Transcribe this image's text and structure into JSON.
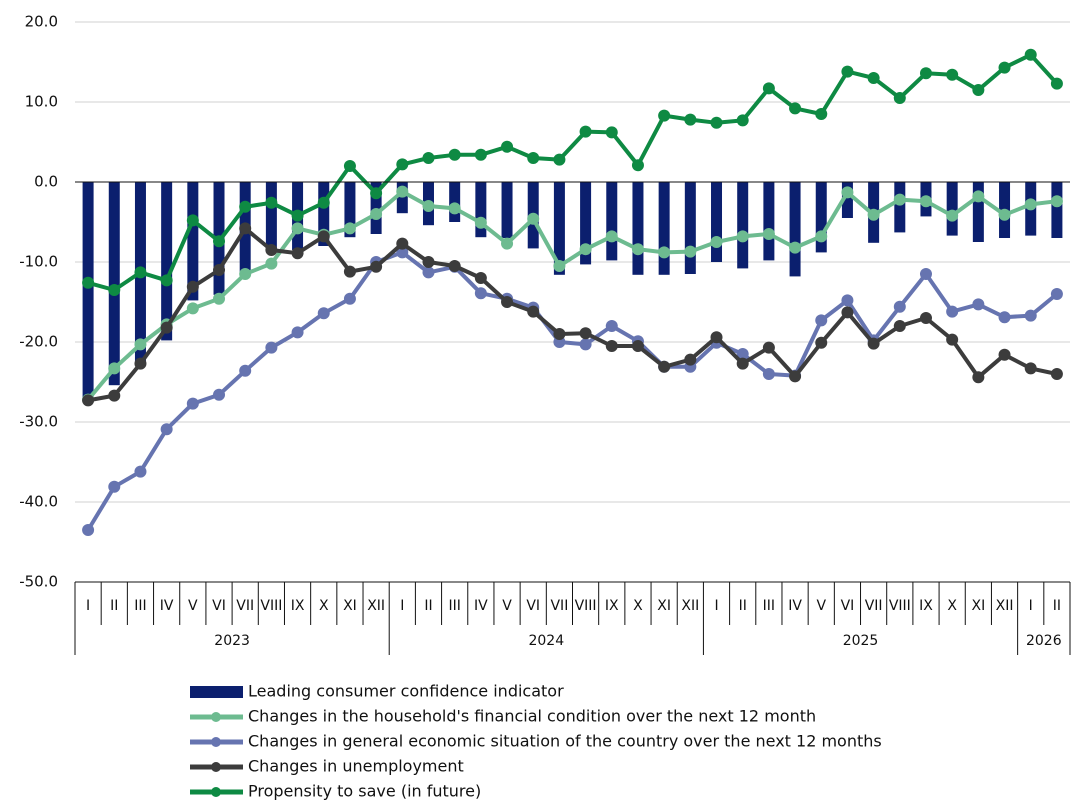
{
  "chart_data": {
    "type": "bar-line",
    "category_groups": [
      {
        "label": "2023",
        "categories": [
          "I",
          "II",
          "III",
          "IV",
          "V",
          "VI",
          "VII",
          "VIII",
          "IX",
          "X",
          "XI",
          "XII"
        ]
      },
      {
        "label": "2024",
        "categories": [
          "I",
          "II",
          "III",
          "IV",
          "V",
          "VI",
          "VII",
          "VIII",
          "IX",
          "X",
          "XI",
          "XII"
        ]
      },
      {
        "label": "2025",
        "categories": [
          "I",
          "II",
          "III",
          "IV",
          "V",
          "VI",
          "VII",
          "VIII",
          "IX",
          "X",
          "XI",
          "XII"
        ]
      },
      {
        "label": "2026",
        "categories": [
          "I",
          "II"
        ]
      }
    ],
    "series": [
      {
        "name": "Leading consumer confidence indicator",
        "type": "bar",
        "color": "#0b1f6e",
        "values": [
          -27.3,
          -25.4,
          -22.5,
          -19.8,
          -14.8,
          -14.1,
          -11.3,
          -8.5,
          -8.5,
          -8.0,
          -6.9,
          -6.5,
          -3.9,
          -5.4,
          -5.0,
          -6.9,
          -7.0,
          -8.3,
          -11.6,
          -10.3,
          -9.8,
          -11.6,
          -11.6,
          -11.5,
          -10.0,
          -10.8,
          -9.8,
          -11.8,
          -8.8,
          -4.5,
          -7.6,
          -6.3,
          -4.3,
          -6.7,
          -7.5,
          -7.0,
          -6.7,
          -7.0
        ]
      },
      {
        "name": "Changes in the household's financial condition over the next 12 month",
        "type": "line",
        "color": "#6dbb90",
        "values": [
          -27.2,
          -23.3,
          -20.3,
          -17.8,
          -15.8,
          -14.6,
          -11.5,
          -10.2,
          -5.8,
          -6.6,
          -5.8,
          -4.0,
          -1.2,
          -3.0,
          -3.3,
          -5.1,
          -7.7,
          -4.6,
          -10.5,
          -8.4,
          -6.8,
          -8.4,
          -8.8,
          -8.7,
          -7.5,
          -6.8,
          -6.5,
          -8.2,
          -6.8,
          -1.3,
          -4.1,
          -2.2,
          -2.4,
          -4.2,
          -1.8,
          -4.1,
          -2.8,
          -2.4
        ]
      },
      {
        "name": "Changes in general economic situation of the country over the next 12 months",
        "type": "line",
        "color": "#6674b0",
        "values": [
          -43.5,
          -38.1,
          -36.2,
          -30.9,
          -27.7,
          -26.6,
          -23.6,
          -20.7,
          -18.8,
          -16.4,
          -14.6,
          -10.0,
          -8.8,
          -11.3,
          -10.6,
          -13.9,
          -14.6,
          -15.7,
          -20.0,
          -20.3,
          -18.0,
          -19.9,
          -23.1,
          -23.1,
          -20.1,
          -21.5,
          -24.0,
          -24.2,
          -17.3,
          -14.8,
          -19.8,
          -15.6,
          -11.5,
          -16.2,
          -15.3,
          -16.9,
          -16.7,
          -14.0
        ]
      },
      {
        "name": "Changes in unemployment",
        "type": "line",
        "color": "#3c3c3c",
        "values": [
          -27.3,
          -26.7,
          -22.7,
          -18.2,
          -13.1,
          -11.0,
          -5.8,
          -8.5,
          -8.9,
          -6.8,
          -11.2,
          -10.6,
          -7.7,
          -10.0,
          -10.5,
          -12.0,
          -15.0,
          -16.2,
          -19.0,
          -18.9,
          -20.5,
          -20.5,
          -23.1,
          -22.2,
          -19.4,
          -22.7,
          -20.7,
          -24.3,
          -20.1,
          -16.3,
          -20.2,
          -18.0,
          -17.0,
          -19.7,
          -24.4,
          -21.6,
          -23.3,
          -24.0
        ]
      },
      {
        "name": "Propensity to save (in future)",
        "type": "line",
        "color": "#0e8a43",
        "values": [
          -12.6,
          -13.5,
          -11.3,
          -12.3,
          -4.8,
          -7.4,
          -3.1,
          -2.6,
          -4.2,
          -2.6,
          2.0,
          -1.4,
          2.2,
          3.0,
          3.4,
          3.4,
          4.4,
          3.0,
          2.8,
          6.3,
          6.2,
          2.1,
          8.3,
          7.8,
          7.4,
          7.7,
          11.7,
          9.2,
          8.5,
          13.8,
          13.0,
          10.5,
          13.6,
          13.4,
          11.5,
          14.3,
          15.9,
          12.3
        ]
      }
    ],
    "ylim": [
      -50,
      20
    ],
    "yticks": [
      {
        "value": -50,
        "label": "-50.0"
      },
      {
        "value": -40,
        "label": "-40.0"
      },
      {
        "value": -30,
        "label": "-30.0"
      },
      {
        "value": -20,
        "label": "-20.0"
      },
      {
        "value": -10,
        "label": "-10.0"
      },
      {
        "value": 0,
        "label": "0.0"
      },
      {
        "value": 10,
        "label": "10.0"
      },
      {
        "value": 20,
        "label": "20.0"
      }
    ],
    "grid": true,
    "legend": "bottom"
  }
}
